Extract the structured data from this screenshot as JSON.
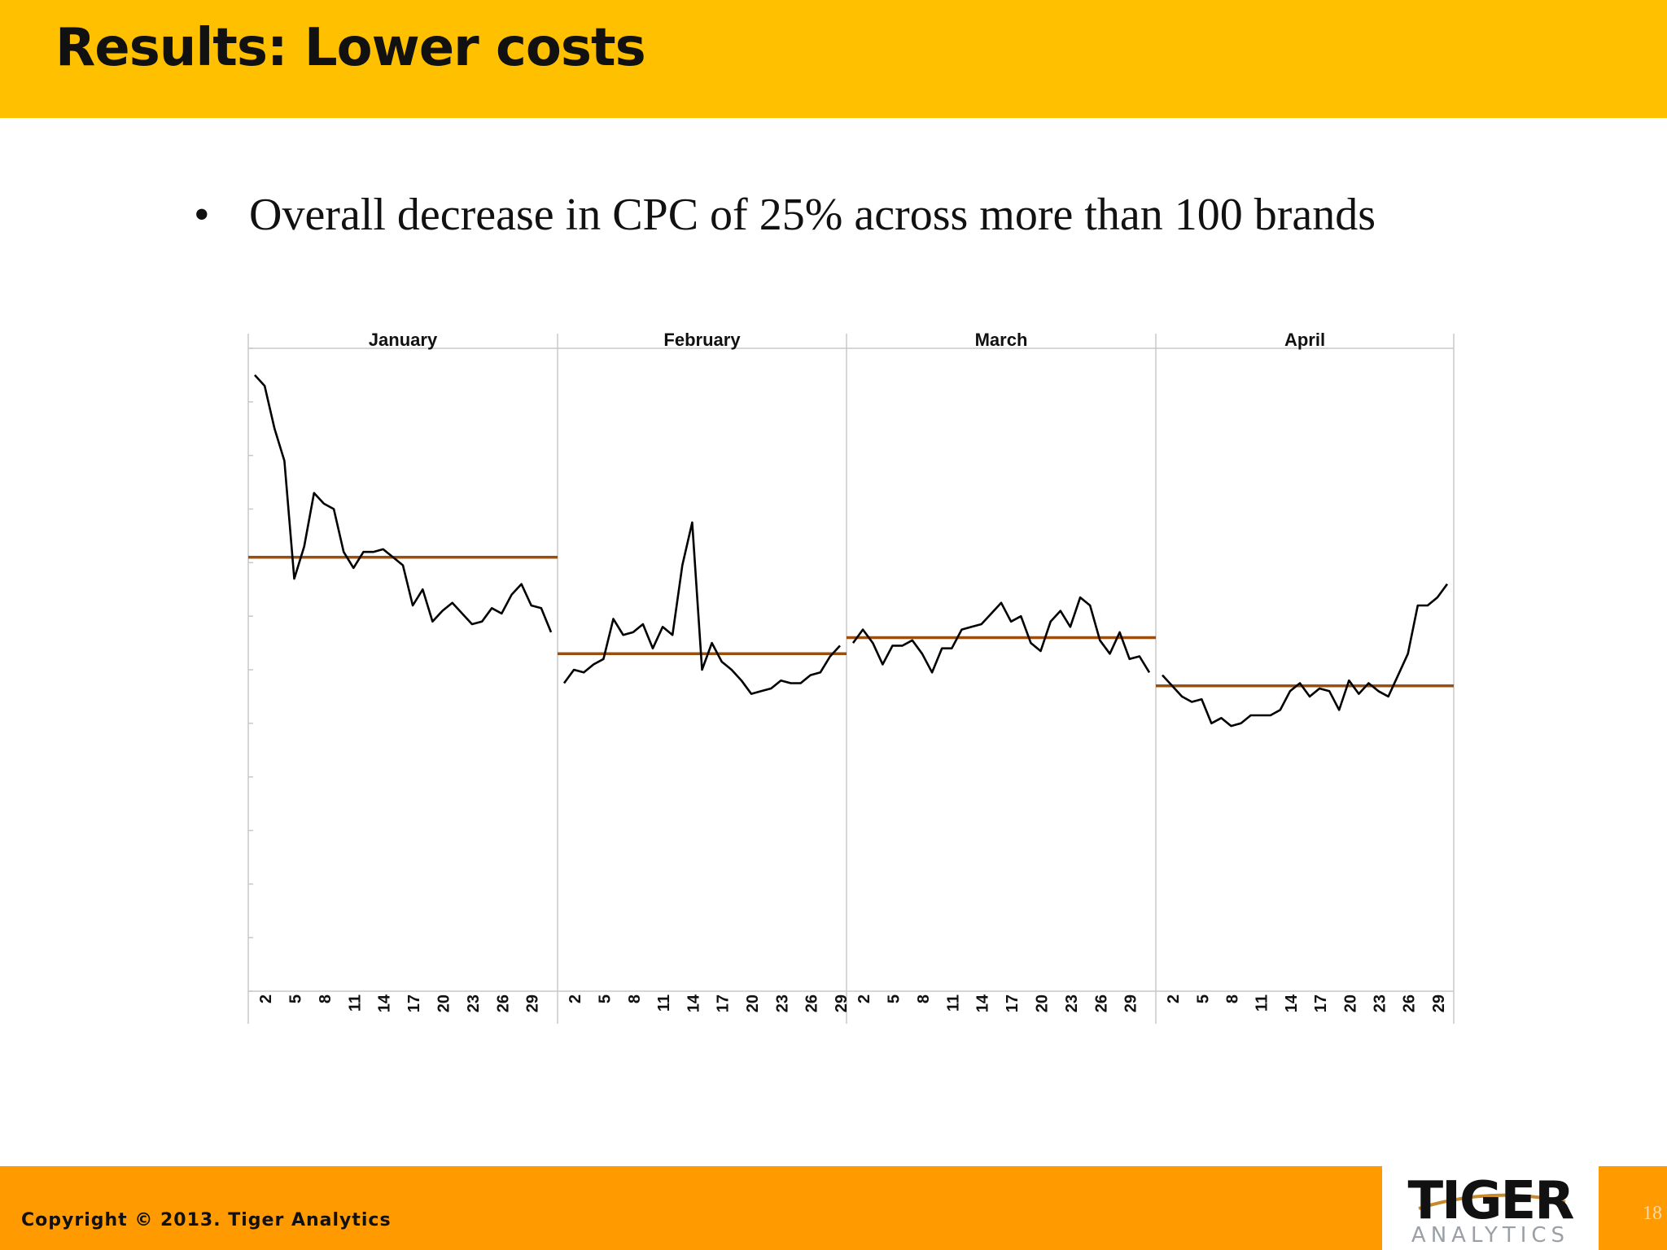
{
  "slide": {
    "title": "Results: Lower costs",
    "bullet": "Overall decrease in CPC of 25% across more than 100 brands",
    "bullet_symbol": "•",
    "copyright": "Copyright © 2013. Tiger Analytics",
    "page_number": "18"
  },
  "logo": {
    "name": "TIGER",
    "subtitle": "ANALYTICS"
  },
  "colors": {
    "title_bar": "#ffc000",
    "footer_bar": "#ff9a00",
    "series_line": "#000000",
    "mean_line": "#9c4f0c",
    "grid": "#c8c8c8"
  },
  "chart_data": {
    "type": "line",
    "title": "",
    "xlabel": "",
    "ylabel": "",
    "ylim": [
      0,
      12
    ],
    "grid": false,
    "panels": [
      {
        "name": "January",
        "x_ticks": [
          "2",
          "5",
          "8",
          "11",
          "14",
          "17",
          "20",
          "23",
          "26",
          "29"
        ],
        "mean": 8.1,
        "values": [
          11.5,
          11.3,
          10.5,
          9.9,
          7.7,
          8.3,
          9.3,
          9.1,
          9.0,
          8.2,
          7.9,
          8.2,
          8.2,
          8.25,
          8.1,
          7.95,
          7.2,
          7.5,
          6.9,
          7.1,
          7.25,
          7.05,
          6.85,
          6.9,
          7.15,
          7.05,
          7.4,
          7.6,
          7.2,
          7.15,
          6.7
        ]
      },
      {
        "name": "February",
        "x_ticks": [
          "2",
          "5",
          "8",
          "11",
          "14",
          "17",
          "20",
          "23",
          "26",
          "29"
        ],
        "mean": 6.3,
        "values": [
          5.75,
          6.0,
          5.95,
          6.1,
          6.2,
          6.95,
          6.65,
          6.7,
          6.85,
          6.4,
          6.8,
          6.65,
          7.95,
          8.75,
          6.0,
          6.5,
          6.15,
          6.0,
          5.8,
          5.55,
          5.6,
          5.65,
          5.8,
          5.75,
          5.75,
          5.9,
          5.95,
          6.25,
          6.45
        ]
      },
      {
        "name": "March",
        "x_ticks": [
          "2",
          "5",
          "8",
          "11",
          "14",
          "17",
          "20",
          "23",
          "26",
          "29"
        ],
        "mean": 6.6,
        "values": [
          6.5,
          6.75,
          6.5,
          6.1,
          6.45,
          6.45,
          6.55,
          6.3,
          5.95,
          6.4,
          6.4,
          6.75,
          6.8,
          6.85,
          7.05,
          7.25,
          6.9,
          7.0,
          6.5,
          6.35,
          6.9,
          7.1,
          6.8,
          7.35,
          7.2,
          6.55,
          6.3,
          6.7,
          6.2,
          6.25,
          5.95
        ]
      },
      {
        "name": "April",
        "x_ticks": [
          "2",
          "5",
          "8",
          "11",
          "14",
          "17",
          "20",
          "23",
          "26",
          "29"
        ],
        "mean": 5.7,
        "values": [
          5.9,
          5.7,
          5.5,
          5.4,
          5.45,
          5.0,
          5.1,
          4.95,
          5.0,
          5.15,
          5.15,
          5.15,
          5.25,
          5.6,
          5.75,
          5.5,
          5.65,
          5.6,
          5.25,
          5.8,
          5.55,
          5.75,
          5.6,
          5.5,
          5.9,
          6.3,
          7.2,
          7.2,
          7.35,
          7.6
        ]
      }
    ]
  }
}
